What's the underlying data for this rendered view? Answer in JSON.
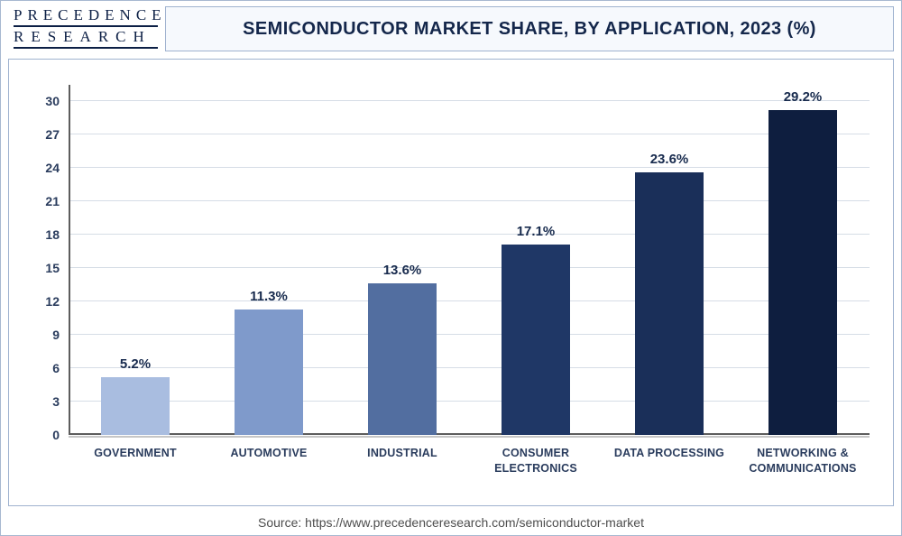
{
  "logo": {
    "line1": "PRECEDENCE",
    "line2": "RESEARCH"
  },
  "title": "SEMICONDUCTOR MARKET SHARE, BY APPLICATION, 2023 (%)",
  "source": "Source: https://www.precedenceresearch.com/semiconductor-market",
  "chart": {
    "type": "bar",
    "ylim_max": 31.5,
    "yticks": [
      0,
      3,
      6,
      9,
      12,
      15,
      18,
      21,
      24,
      27,
      30
    ],
    "grid_color": "#d6dde6",
    "axis_color": "#5d5d5d",
    "background_color": "#ffffff",
    "bar_width_pct": 52,
    "label_fontsize": 15,
    "tick_fontsize": 14,
    "xtick_fontsize": 12.5,
    "categories": [
      {
        "name": "GOVERNMENT",
        "value": 5.2,
        "label": "5.2%",
        "color": "#a9bde0"
      },
      {
        "name": "AUTOMOTIVE",
        "value": 11.3,
        "label": "11.3%",
        "color": "#7f9acb"
      },
      {
        "name": "INDUSTRIAL",
        "value": 13.6,
        "label": "13.6%",
        "color": "#526ea0"
      },
      {
        "name": "CONSUMER\nELECTRONICS",
        "value": 17.1,
        "label": "17.1%",
        "color": "#1f3766"
      },
      {
        "name": "DATA PROCESSING",
        "value": 23.6,
        "label": "23.6%",
        "color": "#1a2f59"
      },
      {
        "name": "NETWORKING &\nCOMMUNICATIONS",
        "value": 29.2,
        "label": "29.2%",
        "color": "#0e1e3f"
      }
    ]
  }
}
